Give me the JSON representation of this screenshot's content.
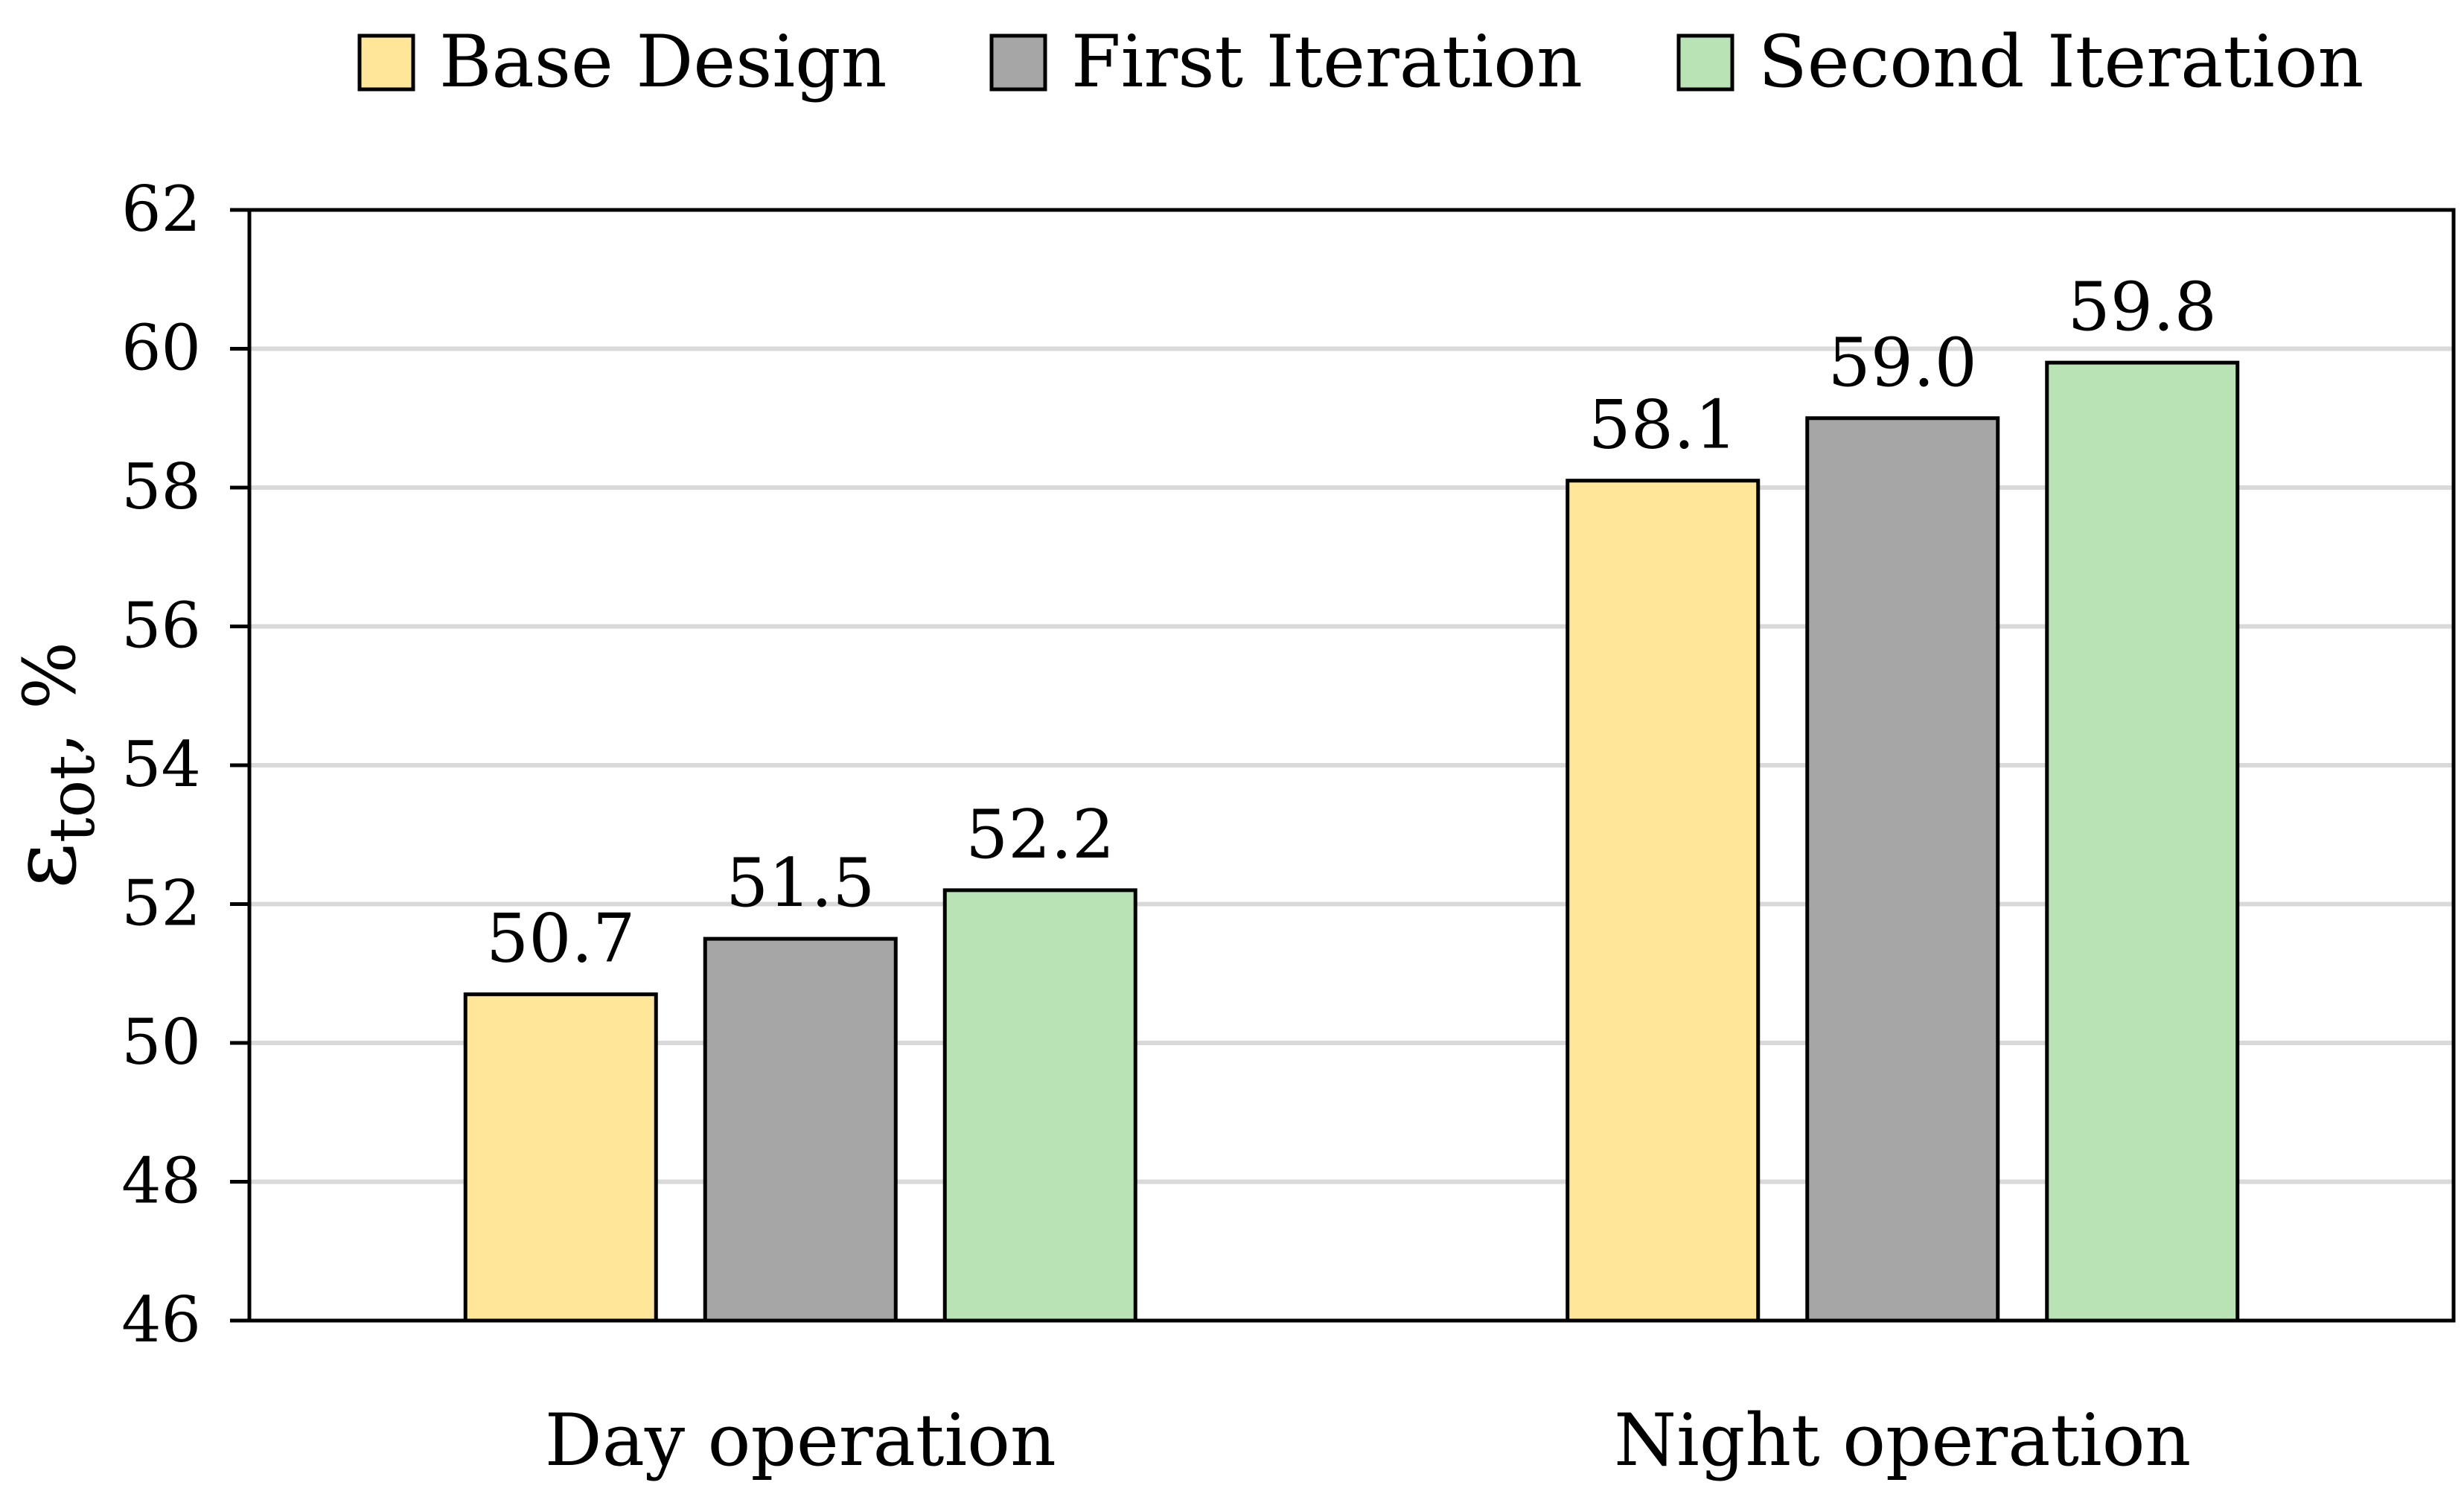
{
  "chart_data": {
    "type": "bar",
    "title": "",
    "categories": [
      "Day operation",
      "Night operation"
    ],
    "series": [
      {
        "name": "Base Design",
        "values": [
          50.7,
          58.1
        ],
        "labels": [
          "50.7",
          "58.1"
        ],
        "color": "#FFE699"
      },
      {
        "name": "First Iteration",
        "values": [
          51.5,
          59.0
        ],
        "labels": [
          "51.5",
          "59.0"
        ],
        "color": "#A6A6A6"
      },
      {
        "name": "Second Iteration",
        "values": [
          52.2,
          59.8
        ],
        "labels": [
          "52.2",
          "59.8"
        ],
        "color": "#B9E2B5"
      }
    ],
    "xlabel": "",
    "ylabel": {
      "symbol": "ε",
      "subscript": "tot",
      "suffix": ", %"
    },
    "ylim": [
      46,
      62
    ],
    "yticks": [
      "46",
      "48",
      "50",
      "52",
      "54",
      "56",
      "58",
      "60",
      "62"
    ],
    "grid": true,
    "legend": "top-center"
  }
}
